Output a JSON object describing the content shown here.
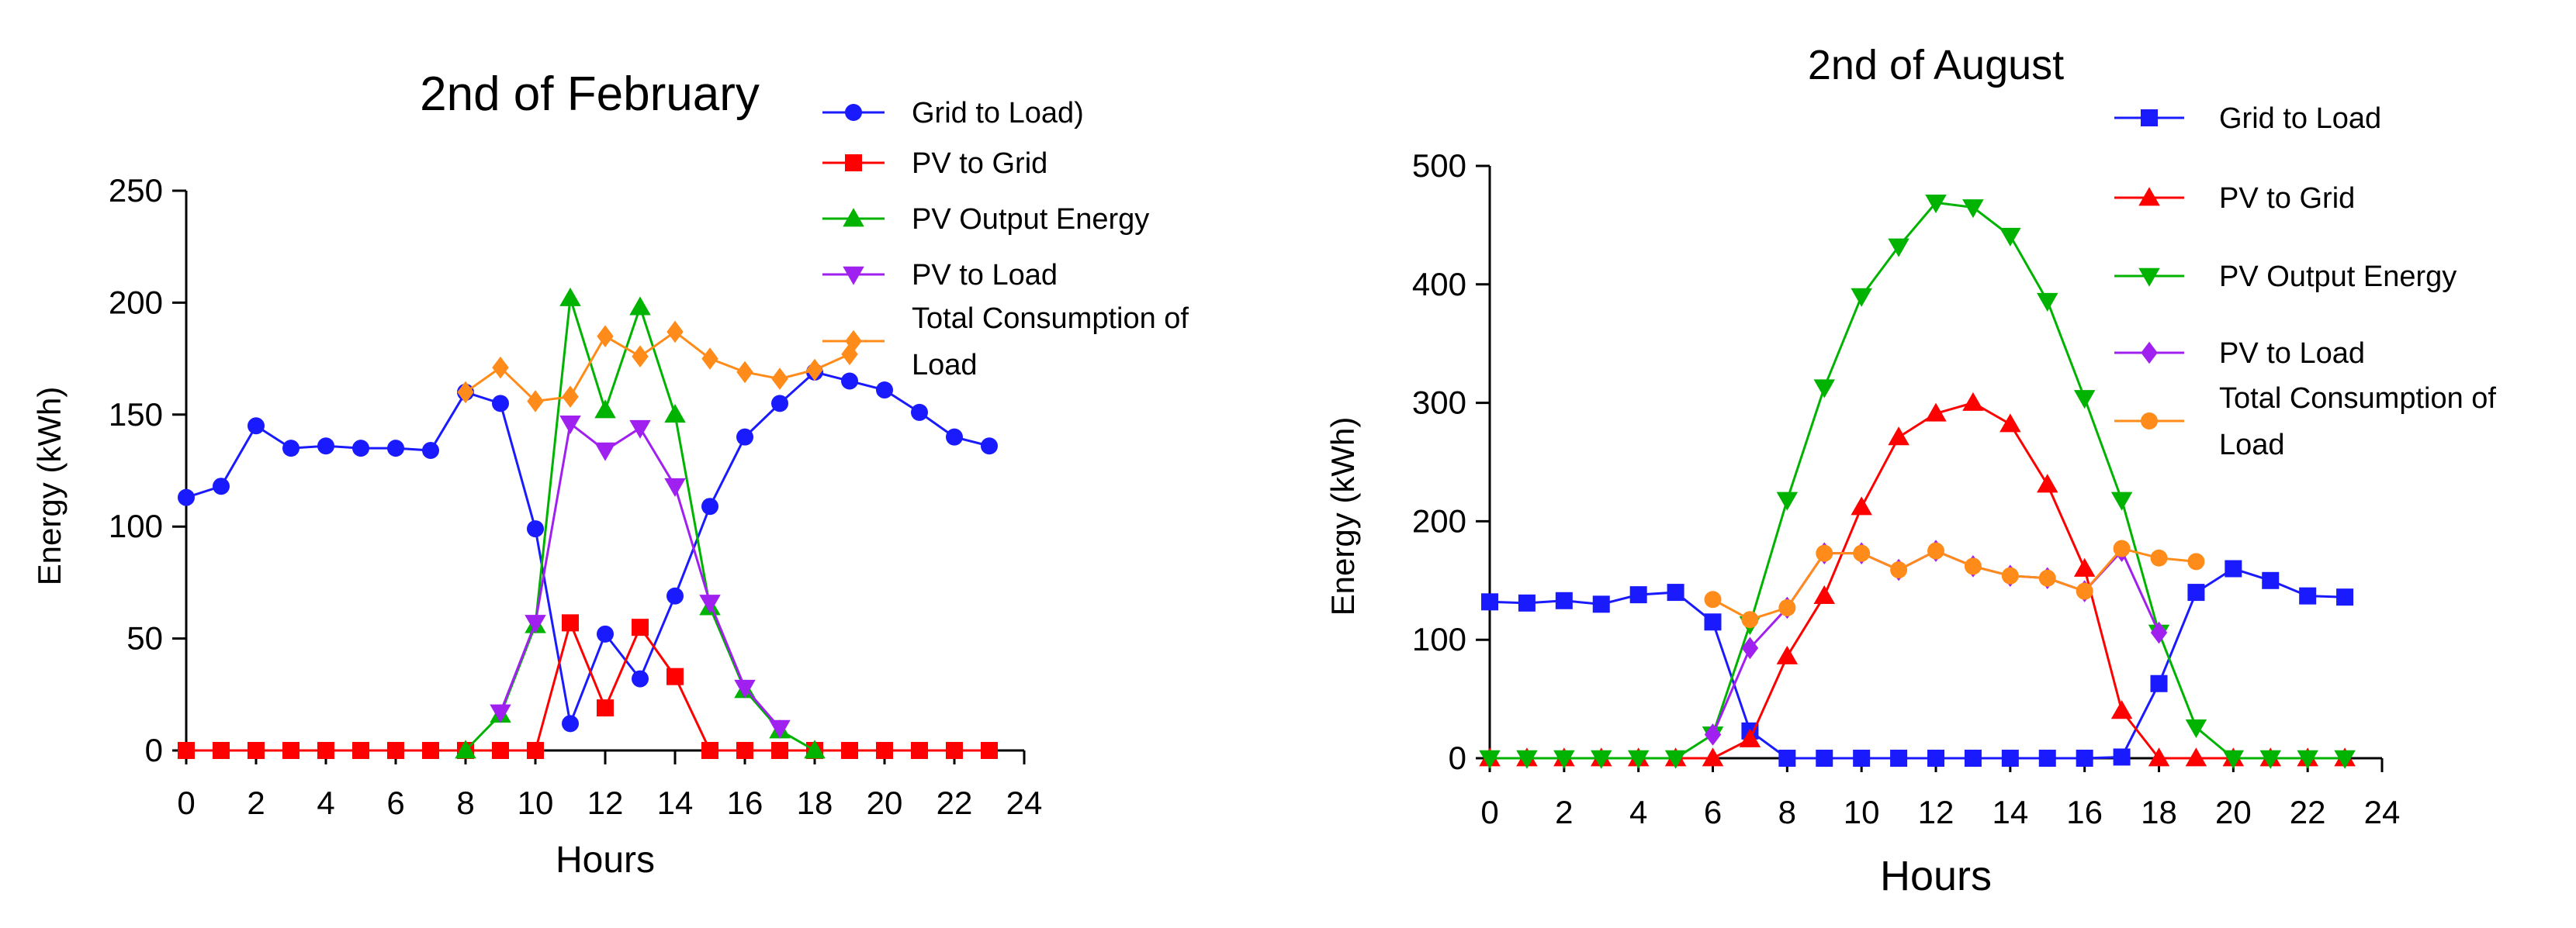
{
  "chart_data": [
    {
      "type": "line",
      "title": "2nd of February",
      "xlabel": "Hours",
      "ylabel": "Energy (kWh)",
      "xlim": [
        0,
        24
      ],
      "ylim": [
        0,
        250
      ],
      "xticks": [
        "0",
        "2",
        "4",
        "6",
        "8",
        "10",
        "12",
        "14",
        "16",
        "18",
        "20",
        "22",
        "24"
      ],
      "yticks": [
        "0",
        "50",
        "100",
        "150",
        "200",
        "250"
      ],
      "grid": false,
      "legend_position": "top-right",
      "series": [
        {
          "name": "Grid to Load)",
          "color": "#1a1aff",
          "marker": "circle",
          "x": [
            0,
            1,
            2,
            3,
            4,
            5,
            6,
            7,
            8,
            9,
            10,
            11,
            12,
            13,
            14,
            15,
            16,
            17,
            18,
            19,
            20,
            21,
            22,
            23
          ],
          "y": [
            113,
            118,
            145,
            135,
            136,
            135,
            135,
            134,
            160,
            155,
            99,
            12,
            52,
            32,
            69,
            109,
            140,
            155,
            169,
            165,
            161,
            151,
            140,
            136
          ]
        },
        {
          "name": "PV to Grid",
          "color": "#ff0000",
          "marker": "square",
          "x": [
            0,
            1,
            2,
            3,
            4,
            5,
            6,
            7,
            8,
            9,
            10,
            11,
            12,
            13,
            14,
            15,
            16,
            17,
            18,
            19,
            20,
            21,
            22,
            23
          ],
          "y": [
            0,
            0,
            0,
            0,
            0,
            0,
            0,
            0,
            0,
            0,
            0,
            57,
            19,
            55,
            33,
            0,
            0,
            0,
            0,
            0,
            0,
            0,
            0,
            0
          ]
        },
        {
          "name": "PV Output Energy",
          "color": "#00b300",
          "marker": "triangle-up",
          "x": [
            8,
            9,
            10,
            11,
            12,
            13,
            14,
            15,
            16,
            17,
            18
          ],
          "y": [
            0,
            16,
            56,
            202,
            152,
            198,
            150,
            64,
            27,
            9,
            0
          ]
        },
        {
          "name": "PV to Load",
          "color": "#a020f0",
          "marker": "triangle-down",
          "x": [
            9,
            10,
            11,
            12,
            13,
            14,
            15,
            16,
            17
          ],
          "y": [
            17,
            57,
            146,
            134,
            144,
            118,
            66,
            28,
            10
          ]
        },
        {
          "name": "Total Consumption of Load",
          "color": "#ff8c1a",
          "marker": "diamond",
          "x": [
            8,
            9,
            10,
            11,
            12,
            13,
            14,
            15,
            16,
            17,
            18,
            19
          ],
          "y": [
            160,
            171,
            156,
            158,
            185,
            176,
            187,
            175,
            169,
            166,
            170,
            177
          ]
        }
      ]
    },
    {
      "type": "line",
      "title": "2nd of August",
      "xlabel": "Hours",
      "ylabel": "Energy (kWh)",
      "xlim": [
        0,
        24
      ],
      "ylim": [
        0,
        500
      ],
      "xticks": [
        "0",
        "2",
        "4",
        "6",
        "8",
        "10",
        "12",
        "14",
        "16",
        "18",
        "20",
        "22",
        "24"
      ],
      "yticks": [
        "0",
        "100",
        "200",
        "300",
        "400",
        "500"
      ],
      "grid": false,
      "legend_position": "top-right",
      "series": [
        {
          "name": "Grid to Load",
          "color": "#1a1aff",
          "marker": "square",
          "x": [
            0,
            1,
            2,
            3,
            4,
            5,
            6,
            7,
            8,
            9,
            10,
            11,
            12,
            13,
            14,
            15,
            16,
            17,
            18,
            19,
            20,
            21,
            22,
            23
          ],
          "y": [
            132,
            131,
            133,
            130,
            138,
            140,
            115,
            23,
            0,
            0,
            0,
            0,
            0,
            0,
            0,
            0,
            0,
            1,
            63,
            140,
            160,
            150,
            137,
            136
          ]
        },
        {
          "name": "PV to Grid",
          "color": "#ff0000",
          "marker": "triangle-up",
          "x": [
            0,
            1,
            2,
            3,
            4,
            5,
            6,
            7,
            8,
            9,
            10,
            11,
            12,
            13,
            14,
            15,
            16,
            17,
            18,
            19,
            20,
            21,
            22,
            23
          ],
          "y": [
            0,
            0,
            0,
            0,
            0,
            0,
            0,
            16,
            86,
            137,
            212,
            271,
            291,
            300,
            282,
            231,
            160,
            40,
            0,
            0,
            0,
            0,
            0,
            0
          ]
        },
        {
          "name": "PV Output Energy",
          "color": "#00b300",
          "marker": "triangle-down",
          "x": [
            0,
            1,
            2,
            3,
            4,
            5,
            6,
            7,
            8,
            9,
            10,
            11,
            12,
            13,
            14,
            15,
            16,
            17,
            18,
            19,
            20,
            21,
            22,
            23
          ],
          "y": [
            0,
            0,
            0,
            0,
            0,
            0,
            20,
            113,
            218,
            313,
            390,
            432,
            469,
            465,
            441,
            386,
            304,
            218,
            106,
            26,
            0,
            0,
            0,
            0
          ]
        },
        {
          "name": "PV to Load",
          "color": "#a020f0",
          "marker": "diamond",
          "x": [
            6,
            7,
            8,
            9,
            10,
            11,
            12,
            13,
            14,
            15,
            16,
            17,
            18
          ],
          "y": [
            20,
            93,
            127,
            173,
            173,
            159,
            175,
            162,
            154,
            152,
            141,
            175,
            106
          ]
        },
        {
          "name": "Total Consumption of Load",
          "color": "#ff8c1a",
          "marker": "circle",
          "x": [
            6,
            7,
            8,
            9,
            10,
            11,
            12,
            13,
            14,
            15,
            16,
            17,
            18,
            19
          ],
          "y": [
            134,
            117,
            127,
            173,
            173,
            159,
            175,
            162,
            154,
            152,
            141,
            177,
            169,
            166
          ]
        }
      ]
    }
  ]
}
